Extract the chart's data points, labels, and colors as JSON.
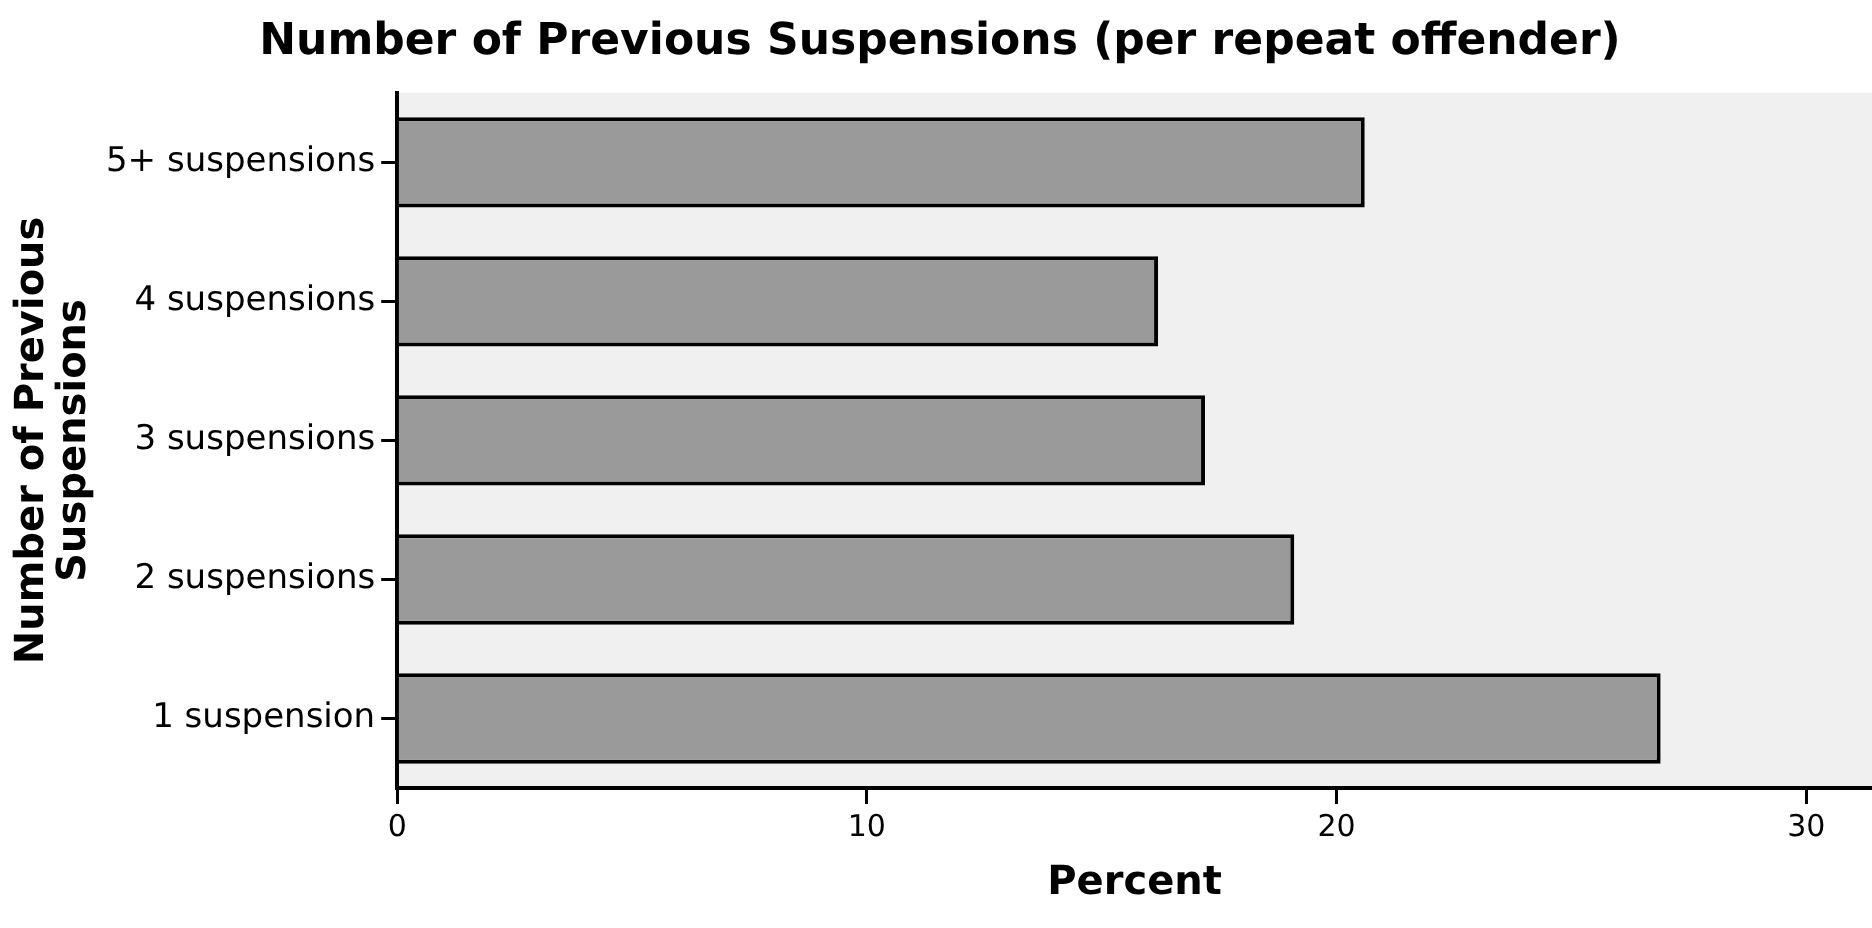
{
  "chart_data": {
    "type": "bar",
    "orientation": "horizontal",
    "title": "Number of Previous Suspensions (per repeat offender)",
    "xlabel": "Percent",
    "ylabel": "Number of Previous Suspensions",
    "categories": [
      "5+ suspensions",
      "4 suspensions",
      "3 suspensions",
      "2 suspensions",
      "1 suspension"
    ],
    "values": [
      20.6,
      16.2,
      17.2,
      19.1,
      26.9
    ],
    "color": "#9a9a9a",
    "xlim": [
      0,
      31.4
    ],
    "xticks": [
      0,
      10,
      20,
      30
    ],
    "grid": false,
    "legend": false
  }
}
